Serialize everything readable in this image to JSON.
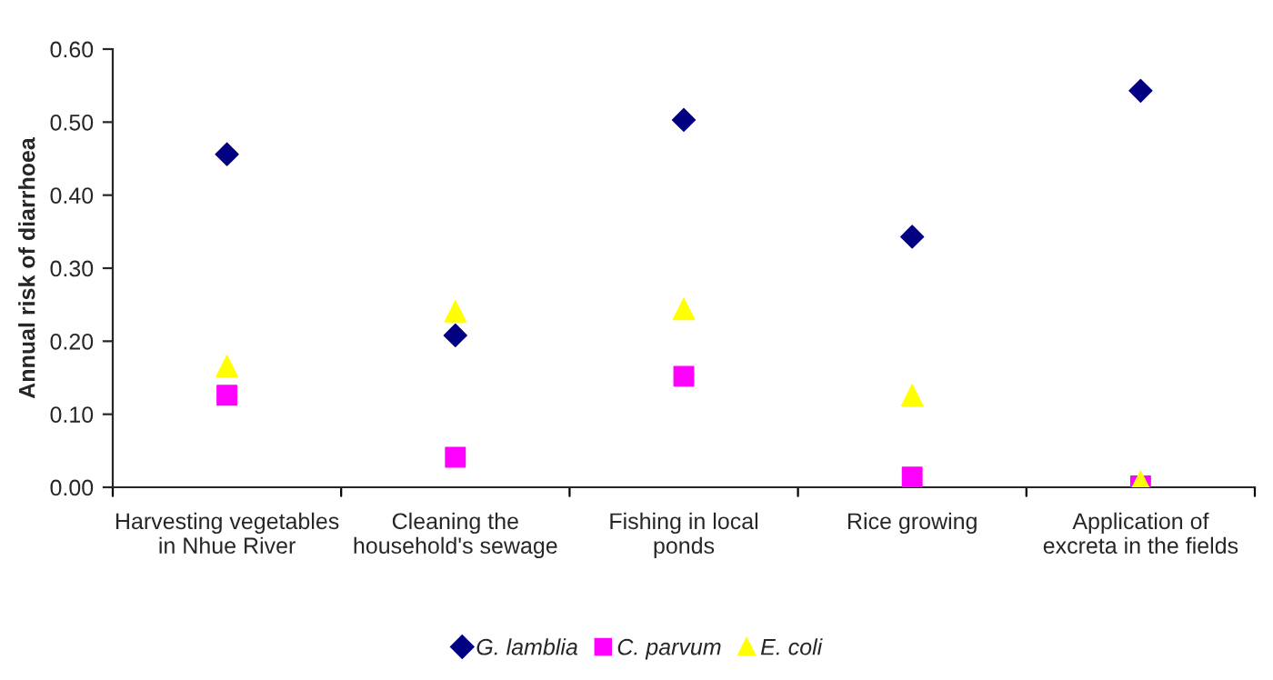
{
  "chart_data": {
    "type": "scatter",
    "ylabel": "Annual risk of diarrhoea",
    "categories": [
      "Harvesting vegetables in Nhue River",
      "Cleaning the household's sewage",
      "Fishing in local ponds",
      "Rice growing",
      "Application of excreta in the fields"
    ],
    "series": [
      {
        "name": "G. lamblia",
        "color": "#000080",
        "marker": "diamond",
        "values": [
          0.456,
          0.208,
          0.503,
          0.343,
          0.543
        ]
      },
      {
        "name": "C. parvum",
        "color": "#ff00ff",
        "marker": "square",
        "values": [
          0.126,
          0.041,
          0.152,
          0.014,
          0.002
        ]
      },
      {
        "name": "E. coli",
        "color": "#ffff00",
        "marker": "triangle",
        "values": [
          0.166,
          0.241,
          0.244,
          0.126,
          0.008
        ]
      }
    ],
    "ylim": [
      0,
      0.6
    ],
    "yticks": [
      {
        "value": 0,
        "label": "0.00"
      },
      {
        "value": 0.1,
        "label": "0.10"
      },
      {
        "value": 0.2,
        "label": "0.20"
      },
      {
        "value": 0.3,
        "label": "0.30"
      },
      {
        "value": 0.4,
        "label": "0.40"
      },
      {
        "value": 0.5,
        "label": "0.50"
      },
      {
        "value": 0.6,
        "label": "0.60"
      }
    ],
    "grid": false,
    "legend": "bottom"
  }
}
